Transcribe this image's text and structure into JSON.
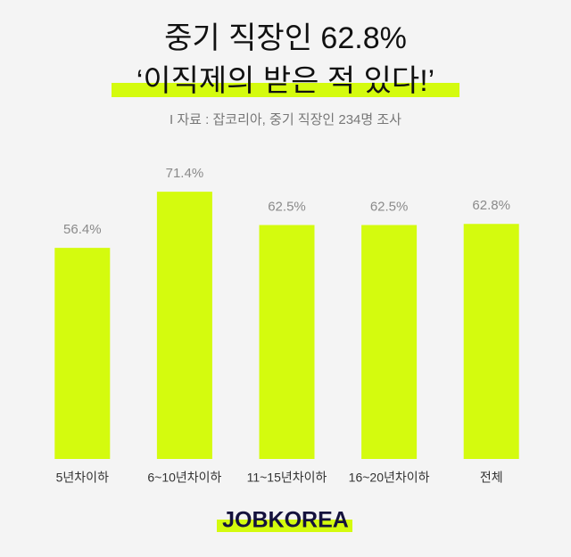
{
  "chart_data": {
    "type": "bar",
    "title": "중기 직장인 62.8%",
    "subtitle": "‘이직제의 받은 적 있다!’",
    "source": "I 자료 : 잡코리아, 중기 직장인 234명 조사",
    "categories": [
      "5년차이하",
      "6~10년차이하",
      "11~15년차이하",
      "16~20년차이하",
      "전체"
    ],
    "values": [
      56.4,
      71.4,
      62.5,
      62.5,
      62.8
    ],
    "value_labels": [
      "56.4%",
      "71.4%",
      "62.5%",
      "62.5%",
      "62.8%"
    ],
    "color": "#d4fb0e"
  },
  "logo": "JOBKOREA"
}
